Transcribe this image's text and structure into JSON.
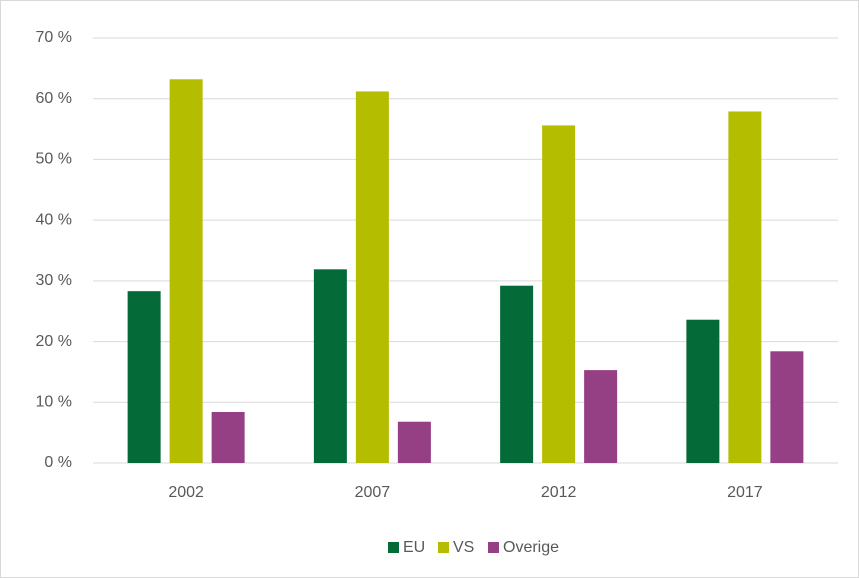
{
  "chart_data": {
    "type": "bar",
    "categories": [
      "2002",
      "2007",
      "2012",
      "2017"
    ],
    "series": [
      {
        "name": "EU",
        "color": "#046a38",
        "values": [
          28.3,
          31.9,
          29.2,
          23.6
        ]
      },
      {
        "name": "VS",
        "color": "#b5bd00",
        "values": [
          63.2,
          61.2,
          55.6,
          57.9
        ]
      },
      {
        "name": "Overige",
        "color": "#953f85",
        "values": [
          8.4,
          6.8,
          15.3,
          18.4
        ]
      }
    ],
    "ylim": [
      0,
      70
    ],
    "yticks": [
      {
        "value": 0,
        "label": "0 %"
      },
      {
        "value": 10,
        "label": "10 %"
      },
      {
        "value": 20,
        "label": "20 %"
      },
      {
        "value": 30,
        "label": "30 %"
      },
      {
        "value": 40,
        "label": "40 %"
      },
      {
        "value": 50,
        "label": "50 %"
      },
      {
        "value": 60,
        "label": "60 %"
      },
      {
        "value": 70,
        "label": "70 %"
      }
    ],
    "grid": true,
    "legend": "bottom"
  }
}
